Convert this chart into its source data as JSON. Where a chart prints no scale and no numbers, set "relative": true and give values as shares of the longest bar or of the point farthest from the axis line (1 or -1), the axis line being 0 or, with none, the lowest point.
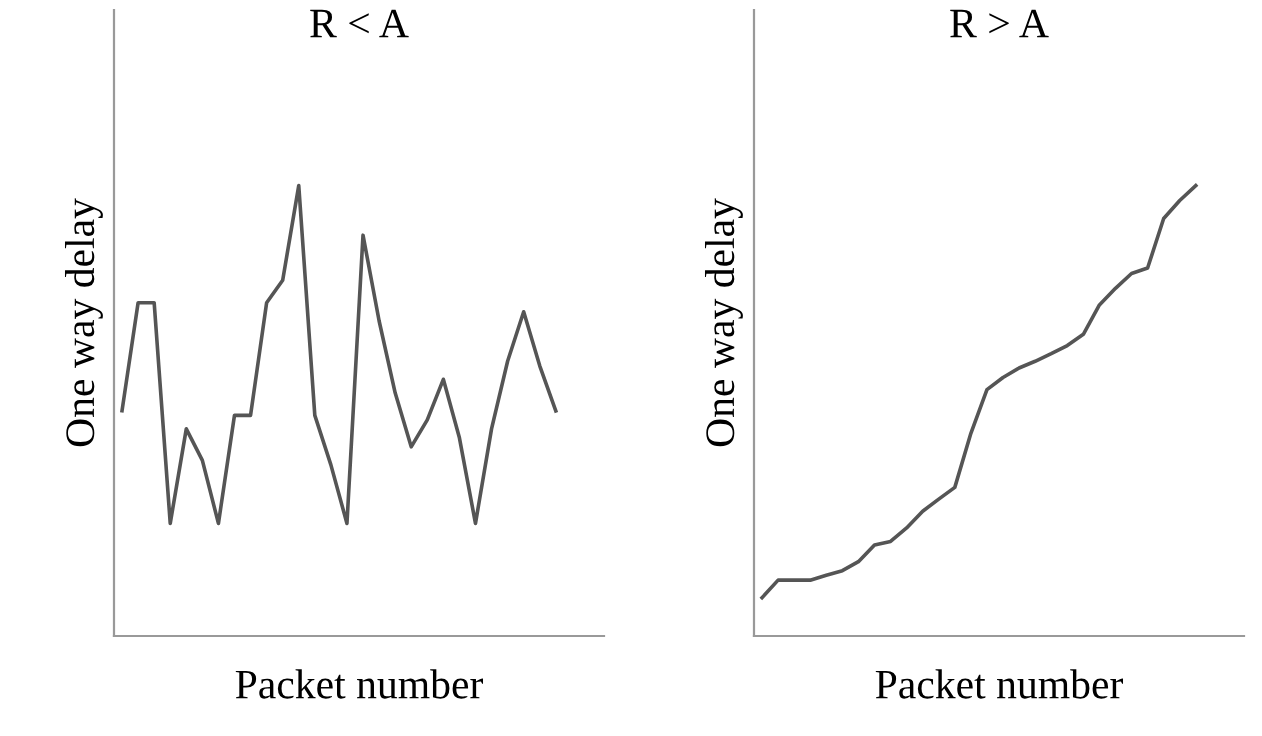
{
  "chart_data": [
    {
      "type": "line",
      "title": "R < A",
      "xlabel": "Packet number",
      "ylabel": "One way delay",
      "relative": true,
      "tick_labels": false,
      "grid": false,
      "marker": "none",
      "line_style": "solid",
      "categories": [
        null,
        null,
        null,
        null,
        null,
        null,
        null,
        null,
        null,
        null,
        null,
        null,
        null,
        null,
        null,
        null,
        null,
        null,
        null,
        null,
        null,
        null,
        null,
        null,
        null,
        null,
        null,
        null
      ],
      "series": [
        {
          "color": "#555555",
          "values": [
            0.5,
            0.74,
            0.74,
            0.25,
            0.46,
            0.39,
            0.25,
            0.49,
            0.49,
            0.74,
            0.79,
            1,
            0.49,
            0.38,
            0.25,
            0.89,
            0.7,
            0.54,
            0.42,
            0.48,
            0.57,
            0.44,
            0.25,
            0.46,
            0.61,
            0.72,
            0.6,
            0.5
          ]
        }
      ]
    },
    {
      "type": "line",
      "title": "R > A",
      "xlabel": "Packet number",
      "ylabel": "One way delay",
      "relative": true,
      "tick_labels": false,
      "grid": false,
      "marker": "none",
      "line_style": "solid",
      "categories": [
        null,
        null,
        null,
        null,
        null,
        null,
        null,
        null,
        null,
        null,
        null,
        null,
        null,
        null,
        null,
        null,
        null,
        null,
        null,
        null,
        null,
        null,
        null,
        null,
        null,
        null,
        null,
        null
      ],
      "series": [
        {
          "color": "#555555",
          "values": [
            0.085,
            0.124,
            0.124,
            0.124,
            0.135,
            0.145,
            0.165,
            0.202,
            0.21,
            0.24,
            0.277,
            0.304,
            0.33,
            0.45,
            0.547,
            0.574,
            0.595,
            0.61,
            0.627,
            0.645,
            0.67,
            0.735,
            0.772,
            0.805,
            0.817,
            0.927,
            0.967,
            1
          ]
        }
      ]
    }
  ]
}
